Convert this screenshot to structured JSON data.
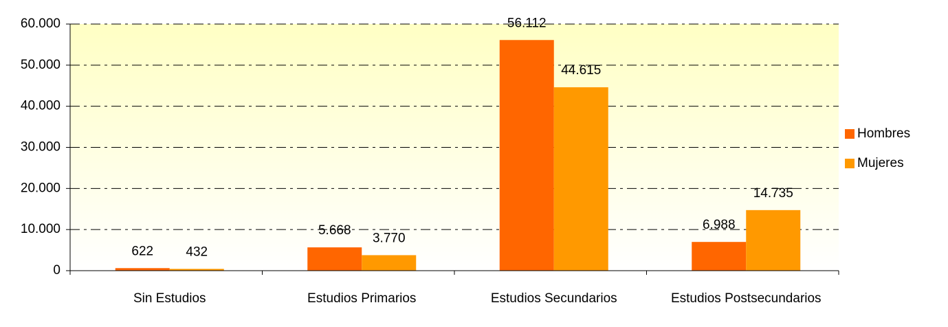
{
  "chart_data": {
    "type": "bar",
    "categories": [
      "Sin Estudios",
      "Estudios Primarios",
      "Estudios Secundarios",
      "Estudios Postsecundarios"
    ],
    "series": [
      {
        "name": "Hombres",
        "color": "#ff6600",
        "values": [
          622,
          5668,
          56112,
          6988
        ],
        "value_labels": [
          "622",
          "5.668",
          "56.112",
          "6.988"
        ]
      },
      {
        "name": "Mujeres",
        "color": "#ff9900",
        "values": [
          432,
          3770,
          44615,
          14735
        ],
        "value_labels": [
          "432",
          "3.770",
          "44.615",
          "14.735"
        ]
      }
    ],
    "ylim": [
      0,
      60000
    ],
    "yticks": [
      0,
      {
        "value": 10000,
        "label": "10.000"
      },
      {
        "value": 20000,
        "label": "20.000"
      },
      {
        "value": 30000,
        "label": "30.000"
      },
      {
        "value": 40000,
        "label": "40.000"
      },
      {
        "value": 50000,
        "label": "50.000"
      },
      {
        "value": 60000,
        "label": "60.000"
      }
    ],
    "grid": true,
    "legend": "right"
  }
}
